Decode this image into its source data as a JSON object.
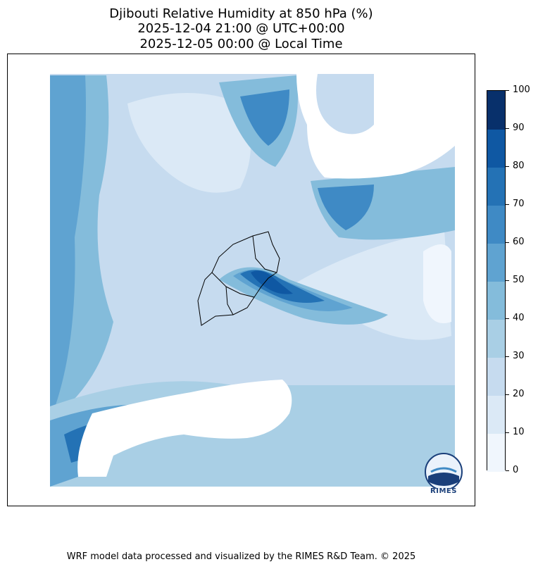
{
  "title": {
    "line1": "Djibouti Relative Humidity at 850 hPa (%)",
    "line2": "2025-12-04 21:00 @ UTC+00:00",
    "line3": "2025-12-05 00:00 @ Local Time"
  },
  "colorbar": {
    "levels": [
      0,
      10,
      20,
      30,
      40,
      50,
      60,
      70,
      80,
      90,
      100
    ],
    "colors": [
      "#f0f6fd",
      "#dbe9f6",
      "#c6dbef",
      "#a9cfe5",
      "#84bcdb",
      "#5fa3d1",
      "#3f8ac5",
      "#2472b5",
      "#0f58a3",
      "#08306b"
    ]
  },
  "logo": {
    "text": "RIMES",
    "icon": "rimes-logo-icon"
  },
  "footer": "WRF model data processed and visualized by the RIMES R&D Team. © 2025"
}
